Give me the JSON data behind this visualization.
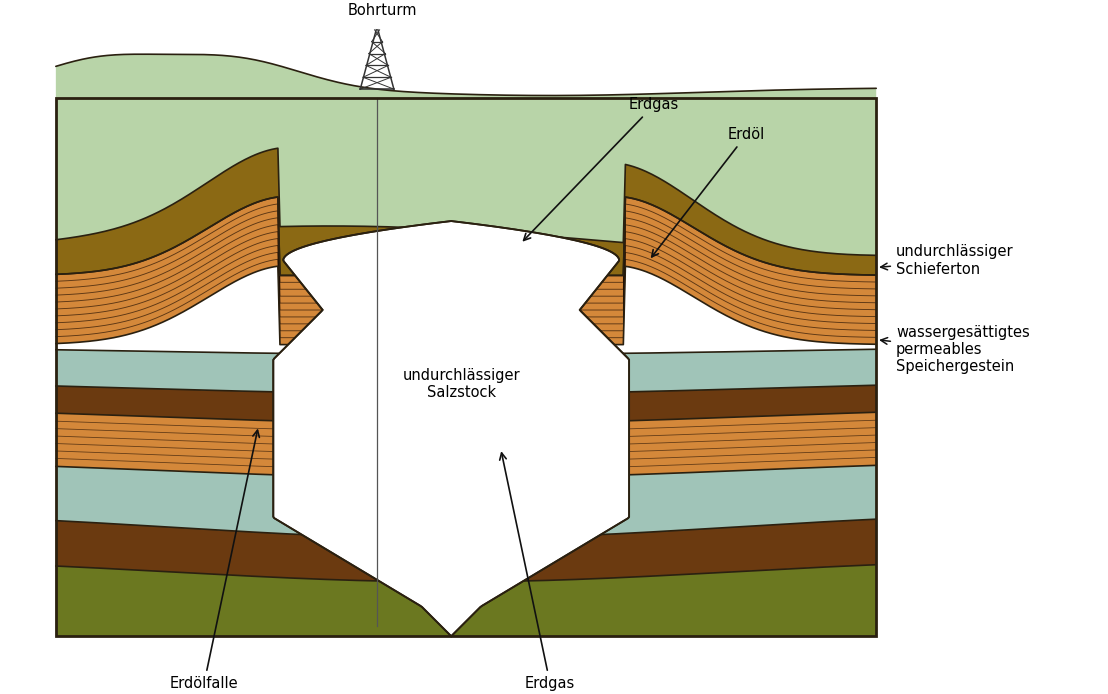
{
  "fig_width": 11.08,
  "fig_height": 6.94,
  "bg_color": "#ffffff",
  "colors": {
    "light_green": "#b8d4a8",
    "brown_upper": "#8b6914",
    "brown_dark": "#6b3a10",
    "light_teal": "#a0c4b8",
    "orange_main": "#d4883a",
    "orange_light": "#e8a855",
    "yellow": "#e8d820",
    "outline": "#2a2010",
    "dark_olive": "#6b7820",
    "salt_white": "#ffffff"
  },
  "labels": {
    "bohrturm": "Bohrturm",
    "erdgas_top": "Erdgas",
    "erdol": "Erdöl",
    "schieferton": "undurchlässiger\nSchieferton",
    "wassergestein": "wassergesättigtes\npermeables\nSpeichergestein",
    "salzstock": "undurchlässiger\nSalzstock",
    "erdolfalle": "Erdölfalle",
    "erdgas_bottom": "Erdgas"
  }
}
